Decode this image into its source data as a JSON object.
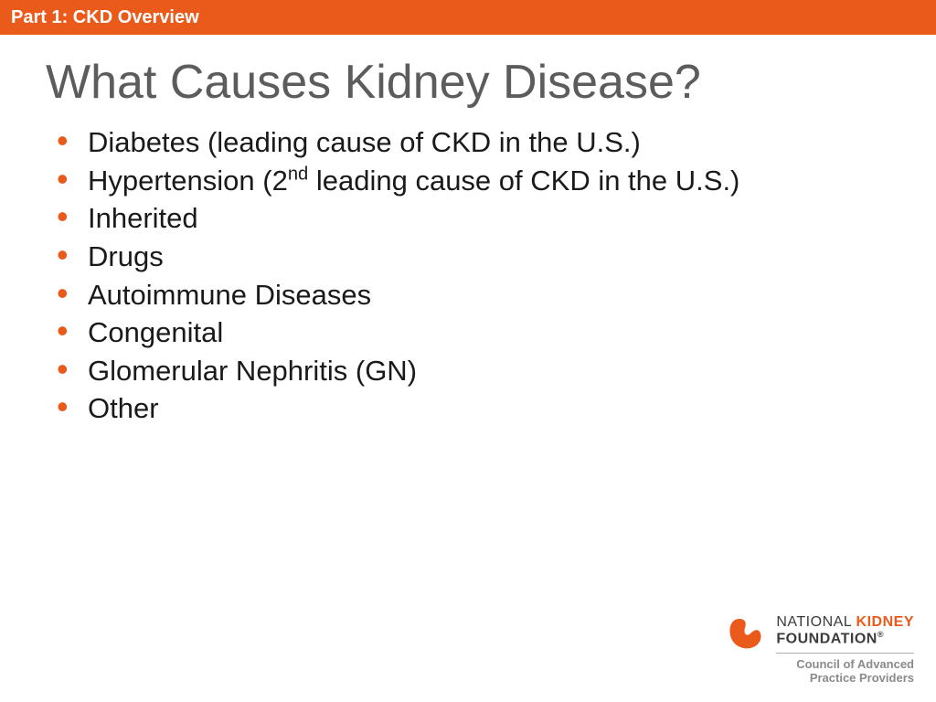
{
  "colors": {
    "header_bg": "#ea5b1b",
    "header_text": "#ffffff",
    "title_text": "#5c5c5c",
    "bullet_text": "#1a1a1a",
    "bullet_marker": "#ea5b1b",
    "logo_shape": "#ea5b1b",
    "logo_text_primary": "#3b3b3b",
    "logo_text_accent": "#ea5b1b",
    "logo_text_sub": "#8a8a8a"
  },
  "typography": {
    "header_fontsize": "20px",
    "title_fontsize": "52px",
    "bullet_fontsize": "31px",
    "logo_line_fontsize": "16px",
    "logo_sub_fontsize": "13px"
  },
  "header": {
    "label": "Part 1: CKD Overview"
  },
  "title": "What Causes Kidney Disease?",
  "bullets": [
    {
      "html": "Diabetes (leading cause of CKD in the U.S.)"
    },
    {
      "html": "Hypertension (2<span class=\"sup\">nd</span> leading cause of CKD in the U.S.)"
    },
    {
      "html": "Inherited"
    },
    {
      "html": "Drugs"
    },
    {
      "html": "Autoimmune Diseases"
    },
    {
      "html": "Congenital"
    },
    {
      "html": "Glomerular Nephritis (GN)"
    },
    {
      "html": "Other"
    }
  ],
  "logo": {
    "line1_a": "NATIONAL ",
    "line1_b": "KIDNEY",
    "line2": "FOUNDATION",
    "reg": "®",
    "sub1": "Council of Advanced",
    "sub2": "Practice Providers"
  }
}
